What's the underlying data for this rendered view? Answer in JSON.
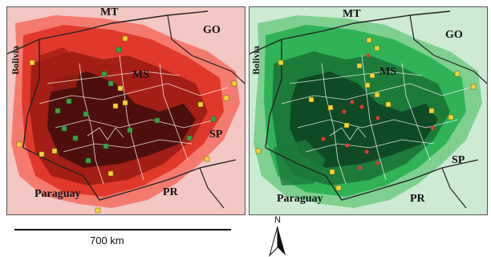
{
  "left_map": {
    "labels": {
      "mt": "MT",
      "go": "GO",
      "bolivia": "Bolivia",
      "ms": "MS",
      "sp": "SP",
      "paraguay": "Paraguay",
      "pr": "PR"
    },
    "palette": {
      "background": "#f3c7c2",
      "light": "#f47a70",
      "mid": "#e0392c",
      "dark": "#a31e16",
      "darkest": "#4d0f0b",
      "marker": "#3aa344"
    },
    "marker_color_name": "green squares"
  },
  "right_map": {
    "labels": {
      "mt": "MT",
      "go": "GO",
      "bolivia": "Bolivia",
      "ms": "MS",
      "sp": "SP",
      "paraguay": "Paraguay",
      "pr": "PR"
    },
    "palette": {
      "background": "#cdebd3",
      "light": "#7fd08f",
      "mid": "#2fb356",
      "dark": "#1d7b3a",
      "darkest": "#0f4a22",
      "marker_red": "#e23b2e"
    },
    "marker_color_name": "red dots"
  },
  "shared": {
    "yellow_marker_color": "#f2d43a",
    "scale_bar_label": "700 km",
    "north_label": "N"
  }
}
